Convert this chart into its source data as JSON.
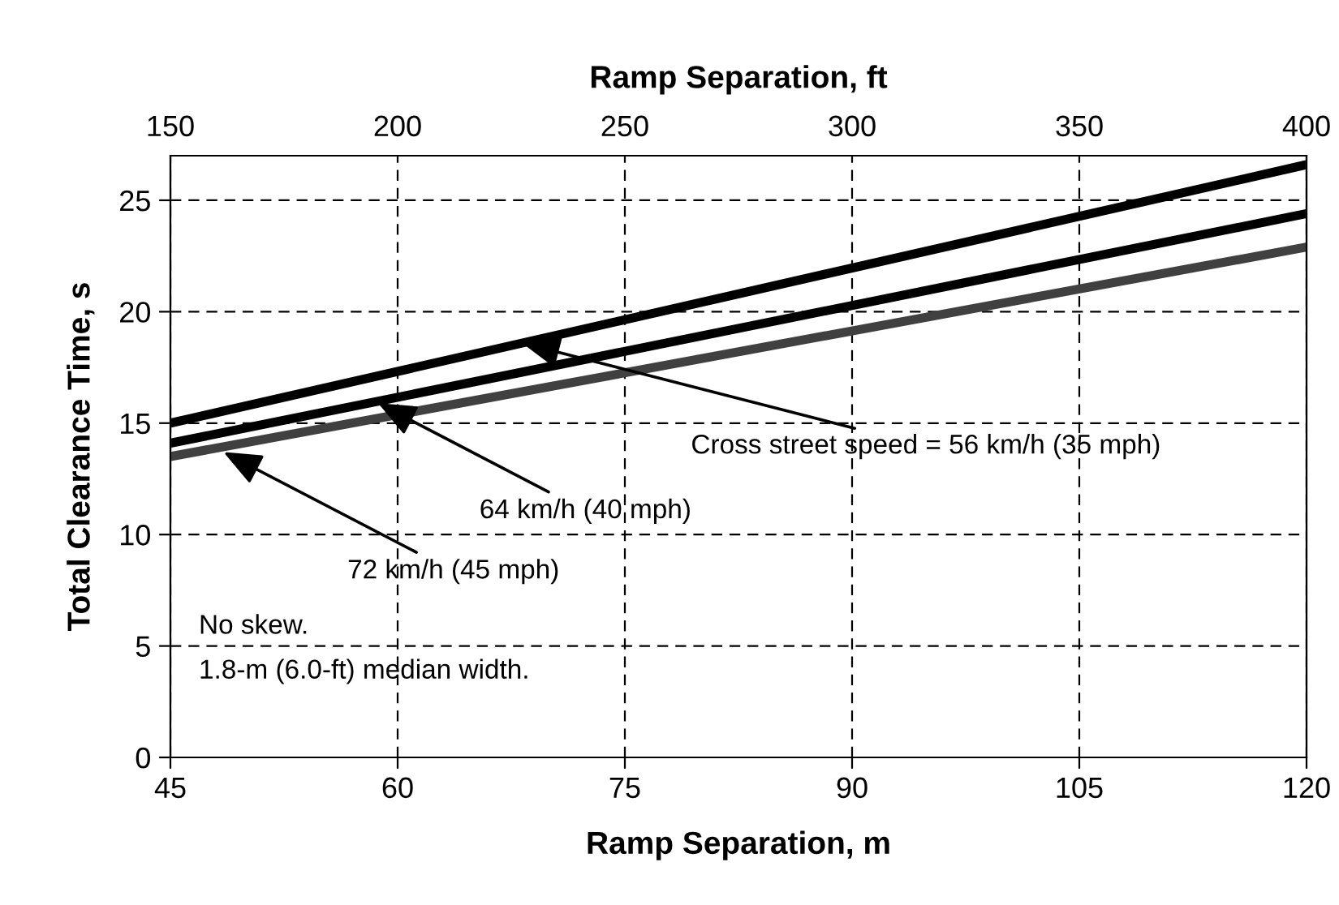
{
  "chart_data": {
    "type": "line",
    "xlabel": "Ramp Separation, m",
    "x2label": "Ramp Separation, ft",
    "ylabel": "Total Clearance Time, s",
    "xlim": [
      45,
      120
    ],
    "xticks": [
      45,
      60,
      75,
      90,
      105,
      120
    ],
    "x2lim": [
      150,
      400
    ],
    "x2ticks": [
      150,
      200,
      250,
      300,
      350,
      400
    ],
    "ylim": [
      0,
      27
    ],
    "x": [
      45,
      120
    ],
    "yticks": [
      0,
      5,
      10,
      15,
      20,
      25
    ],
    "grid": true,
    "legend": false,
    "marker": "none",
    "line_style": "solid",
    "series": [
      {
        "color": "#000000",
        "values": [
          15.0,
          26.6
        ]
      },
      {
        "color": "#000000",
        "values": [
          14.1,
          24.4
        ]
      },
      {
        "color": "#404040",
        "values": [
          13.5,
          22.9
        ]
      }
    ],
    "annotations": [
      {
        "text": "Cross street speed = 56 km/h (35 mph)",
        "x": 68.2,
        "y": 18.6
      },
      {
        "text": "64 km/h (40 mph)",
        "x": 58.7,
        "y": 15.9
      },
      {
        "text": "72 km/h (45 mph)",
        "x": 48.5,
        "y": 13.7
      },
      "No skew.\n1.8-m (6.0-ft) median width."
    ]
  }
}
